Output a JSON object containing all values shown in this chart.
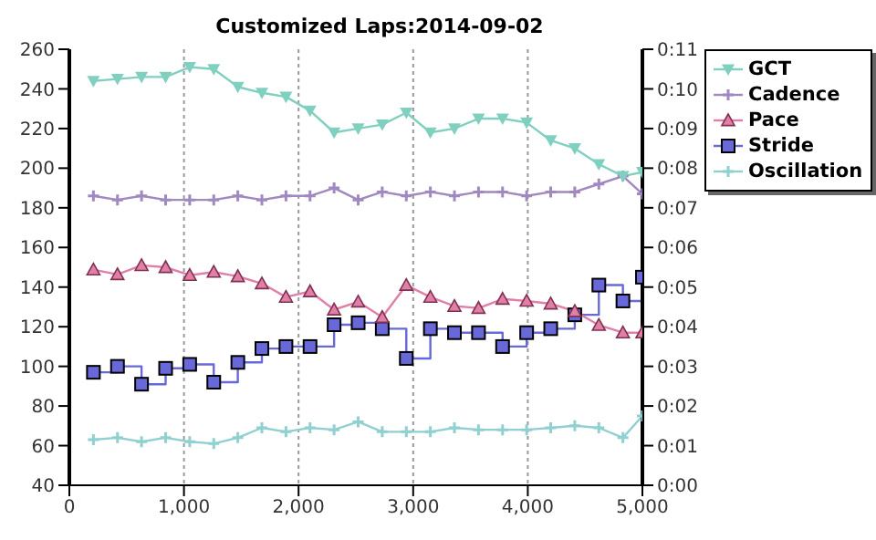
{
  "chart_data": {
    "type": "line",
    "title": "Customized Laps:2014-09-02",
    "x": [
      210,
      420,
      630,
      840,
      1050,
      1260,
      1470,
      1680,
      1890,
      2100,
      2310,
      2520,
      2730,
      2940,
      3150,
      3360,
      3570,
      3780,
      3990,
      4200,
      4410,
      4620,
      4830,
      5000
    ],
    "series": [
      {
        "name": "GCT",
        "color": "#80d0c0",
        "marker": "triangle-down",
        "values": [
          244,
          245,
          246,
          246,
          251,
          250,
          241,
          238,
          236,
          229,
          218,
          220,
          222,
          228,
          218,
          220,
          225,
          225,
          223,
          214,
          210,
          202,
          196,
          198
        ]
      },
      {
        "name": "Cadence",
        "color": "#a088c0",
        "marker": "cross",
        "values": [
          186,
          184,
          186,
          184,
          184,
          184,
          186,
          184,
          186,
          186,
          190,
          184,
          188,
          186,
          188,
          186,
          188,
          188,
          186,
          188,
          188,
          192,
          196,
          187
        ]
      },
      {
        "name": "Pace",
        "color": "#e080a8",
        "marker": "triangle",
        "axis": "y2",
        "values": [
          5.44,
          5.32,
          5.55,
          5.5,
          5.3,
          5.38,
          5.27,
          5.09,
          4.75,
          4.89,
          4.43,
          4.63,
          4.24,
          5.05,
          4.75,
          4.52,
          4.47,
          4.7,
          4.65,
          4.58,
          4.39,
          4.04,
          3.85,
          3.85
        ]
      },
      {
        "name": "Stride",
        "color": "#6868d8",
        "marker": "square",
        "type": "step",
        "values": [
          97,
          100,
          91,
          99,
          101,
          92,
          102,
          109,
          110,
          110,
          121,
          122,
          119,
          104,
          119,
          117,
          117,
          110,
          117,
          119,
          126,
          141,
          133,
          145
        ]
      },
      {
        "name": "Oscillation",
        "color": "#90d0d0",
        "marker": "cross",
        "values": [
          63,
          64,
          62,
          64,
          62,
          61,
          64,
          69,
          67,
          69,
          68,
          72,
          67,
          67,
          67,
          69,
          68,
          68,
          68,
          69,
          70,
          69,
          64,
          75
        ]
      }
    ],
    "xlim": [
      0,
      5000
    ],
    "xticks": [
      {
        "value": 0,
        "label": "0"
      },
      {
        "value": 1000,
        "label": "1,000"
      },
      {
        "value": 2000,
        "label": "2,000"
      },
      {
        "value": 3000,
        "label": "3,000"
      },
      {
        "value": 4000,
        "label": "4,000"
      },
      {
        "value": 5000,
        "label": "5,000"
      }
    ],
    "ylim": [
      40,
      260
    ],
    "yticks": [
      40,
      60,
      80,
      100,
      120,
      140,
      160,
      180,
      200,
      220,
      240,
      260
    ],
    "y2lim": [
      0,
      11
    ],
    "y2ticks": [
      {
        "value": 0,
        "label": "0:00"
      },
      {
        "value": 1,
        "label": "0:01"
      },
      {
        "value": 2,
        "label": "0:02"
      },
      {
        "value": 3,
        "label": "0:03"
      },
      {
        "value": 4,
        "label": "0:04"
      },
      {
        "value": 5,
        "label": "0:05"
      },
      {
        "value": 6,
        "label": "0:06"
      },
      {
        "value": 7,
        "label": "0:07"
      },
      {
        "value": 8,
        "label": "0:08"
      },
      {
        "value": 9,
        "label": "0:09"
      },
      {
        "value": 10,
        "label": "0:10"
      },
      {
        "value": 11,
        "label": "0:11"
      }
    ],
    "grid": true,
    "legend": "top right"
  }
}
